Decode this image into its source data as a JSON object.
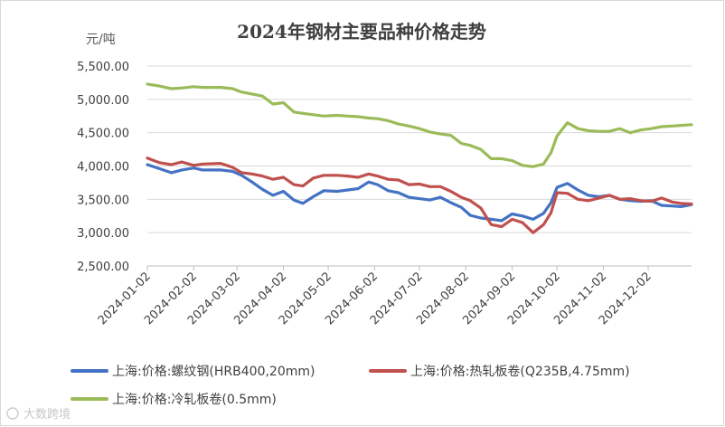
{
  "watermark": "大数跨境",
  "chart_data": {
    "type": "line",
    "title": "2024年钢材主要品种价格走势",
    "unit_label": "元/吨",
    "ylim": [
      2500,
      5500
    ],
    "yticks": [
      "2,500.00",
      "3,000.00",
      "3,500.00",
      "4,000.00",
      "4,500.00",
      "5,000.00",
      "5,500.00"
    ],
    "ytick_values": [
      2500,
      3000,
      3500,
      4000,
      4500,
      5000,
      5500
    ],
    "xlim": [
      "2024-01-02",
      "2024-12-31"
    ],
    "x_ticks": [
      "2024-01-02",
      "2024-02-02",
      "2024-03-02",
      "2024-04-02",
      "2024-05-02",
      "2024-06-02",
      "2024-07-02",
      "2024-08-02",
      "2024-09-02",
      "2024-10-02",
      "2024-11-02",
      "2024-12-02"
    ],
    "grid": "horizontal",
    "legend_position": "bottom",
    "series": [
      {
        "name": "上海:价格:螺纹钢(HRB400,20mm)",
        "color": "#4472C4",
        "points": [
          [
            "2024-01-02",
            4020
          ],
          [
            "2024-01-10",
            3960
          ],
          [
            "2024-01-18",
            3900
          ],
          [
            "2024-01-25",
            3940
          ],
          [
            "2024-02-02",
            3970
          ],
          [
            "2024-02-08",
            3940
          ],
          [
            "2024-02-20",
            3940
          ],
          [
            "2024-02-28",
            3920
          ],
          [
            "2024-03-05",
            3860
          ],
          [
            "2024-03-12",
            3760
          ],
          [
            "2024-03-19",
            3650
          ],
          [
            "2024-03-26",
            3560
          ],
          [
            "2024-04-02",
            3620
          ],
          [
            "2024-04-09",
            3490
          ],
          [
            "2024-04-15",
            3440
          ],
          [
            "2024-04-22",
            3540
          ],
          [
            "2024-04-29",
            3630
          ],
          [
            "2024-05-08",
            3620
          ],
          [
            "2024-05-15",
            3640
          ],
          [
            "2024-05-22",
            3660
          ],
          [
            "2024-05-29",
            3760
          ],
          [
            "2024-06-04",
            3720
          ],
          [
            "2024-06-11",
            3630
          ],
          [
            "2024-06-18",
            3600
          ],
          [
            "2024-06-25",
            3530
          ],
          [
            "2024-07-02",
            3510
          ],
          [
            "2024-07-09",
            3490
          ],
          [
            "2024-07-16",
            3530
          ],
          [
            "2024-07-23",
            3450
          ],
          [
            "2024-07-30",
            3380
          ],
          [
            "2024-08-05",
            3260
          ],
          [
            "2024-08-12",
            3220
          ],
          [
            "2024-08-19",
            3200
          ],
          [
            "2024-08-26",
            3180
          ],
          [
            "2024-09-02",
            3280
          ],
          [
            "2024-09-09",
            3250
          ],
          [
            "2024-09-16",
            3200
          ],
          [
            "2024-09-23",
            3290
          ],
          [
            "2024-09-28",
            3450
          ],
          [
            "2024-10-02",
            3680
          ],
          [
            "2024-10-09",
            3740
          ],
          [
            "2024-10-16",
            3640
          ],
          [
            "2024-10-23",
            3560
          ],
          [
            "2024-10-30",
            3540
          ],
          [
            "2024-11-06",
            3560
          ],
          [
            "2024-11-13",
            3500
          ],
          [
            "2024-11-20",
            3480
          ],
          [
            "2024-11-27",
            3470
          ],
          [
            "2024-12-04",
            3480
          ],
          [
            "2024-12-11",
            3410
          ],
          [
            "2024-12-18",
            3400
          ],
          [
            "2024-12-24",
            3390
          ],
          [
            "2024-12-31",
            3420
          ]
        ]
      },
      {
        "name": "上海:价格:热轧板卷(Q235B,4.75mm)",
        "color": "#C0504D",
        "points": [
          [
            "2024-01-02",
            4120
          ],
          [
            "2024-01-10",
            4050
          ],
          [
            "2024-01-18",
            4020
          ],
          [
            "2024-01-25",
            4060
          ],
          [
            "2024-02-02",
            4010
          ],
          [
            "2024-02-08",
            4030
          ],
          [
            "2024-02-20",
            4040
          ],
          [
            "2024-02-28",
            3980
          ],
          [
            "2024-03-05",
            3900
          ],
          [
            "2024-03-12",
            3880
          ],
          [
            "2024-03-19",
            3850
          ],
          [
            "2024-03-26",
            3800
          ],
          [
            "2024-04-02",
            3830
          ],
          [
            "2024-04-09",
            3720
          ],
          [
            "2024-04-15",
            3700
          ],
          [
            "2024-04-22",
            3820
          ],
          [
            "2024-04-29",
            3860
          ],
          [
            "2024-05-08",
            3860
          ],
          [
            "2024-05-15",
            3850
          ],
          [
            "2024-05-22",
            3830
          ],
          [
            "2024-05-29",
            3880
          ],
          [
            "2024-06-04",
            3850
          ],
          [
            "2024-06-11",
            3800
          ],
          [
            "2024-06-18",
            3790
          ],
          [
            "2024-06-25",
            3720
          ],
          [
            "2024-07-02",
            3730
          ],
          [
            "2024-07-09",
            3690
          ],
          [
            "2024-07-16",
            3690
          ],
          [
            "2024-07-23",
            3620
          ],
          [
            "2024-07-30",
            3530
          ],
          [
            "2024-08-05",
            3480
          ],
          [
            "2024-08-12",
            3370
          ],
          [
            "2024-08-19",
            3120
          ],
          [
            "2024-08-26",
            3090
          ],
          [
            "2024-09-02",
            3200
          ],
          [
            "2024-09-09",
            3150
          ],
          [
            "2024-09-16",
            3000
          ],
          [
            "2024-09-23",
            3120
          ],
          [
            "2024-09-28",
            3300
          ],
          [
            "2024-10-02",
            3600
          ],
          [
            "2024-10-09",
            3590
          ],
          [
            "2024-10-16",
            3500
          ],
          [
            "2024-10-23",
            3480
          ],
          [
            "2024-10-30",
            3520
          ],
          [
            "2024-11-06",
            3560
          ],
          [
            "2024-11-13",
            3500
          ],
          [
            "2024-11-20",
            3510
          ],
          [
            "2024-11-27",
            3480
          ],
          [
            "2024-12-04",
            3470
          ],
          [
            "2024-12-11",
            3520
          ],
          [
            "2024-12-18",
            3460
          ],
          [
            "2024-12-24",
            3440
          ],
          [
            "2024-12-31",
            3430
          ]
        ]
      },
      {
        "name": "上海:价格:冷轧板卷(0.5mm)",
        "color": "#9BBB59",
        "points": [
          [
            "2024-01-02",
            5230
          ],
          [
            "2024-01-10",
            5200
          ],
          [
            "2024-01-18",
            5160
          ],
          [
            "2024-01-25",
            5170
          ],
          [
            "2024-02-02",
            5190
          ],
          [
            "2024-02-08",
            5180
          ],
          [
            "2024-02-20",
            5180
          ],
          [
            "2024-02-28",
            5160
          ],
          [
            "2024-03-05",
            5110
          ],
          [
            "2024-03-12",
            5080
          ],
          [
            "2024-03-19",
            5050
          ],
          [
            "2024-03-26",
            4930
          ],
          [
            "2024-04-02",
            4950
          ],
          [
            "2024-04-09",
            4810
          ],
          [
            "2024-04-15",
            4790
          ],
          [
            "2024-04-22",
            4770
          ],
          [
            "2024-04-29",
            4750
          ],
          [
            "2024-05-08",
            4760
          ],
          [
            "2024-05-15",
            4750
          ],
          [
            "2024-05-22",
            4740
          ],
          [
            "2024-05-29",
            4720
          ],
          [
            "2024-06-04",
            4710
          ],
          [
            "2024-06-11",
            4680
          ],
          [
            "2024-06-18",
            4630
          ],
          [
            "2024-06-25",
            4600
          ],
          [
            "2024-07-02",
            4560
          ],
          [
            "2024-07-09",
            4510
          ],
          [
            "2024-07-16",
            4480
          ],
          [
            "2024-07-23",
            4460
          ],
          [
            "2024-07-30",
            4340
          ],
          [
            "2024-08-05",
            4310
          ],
          [
            "2024-08-12",
            4250
          ],
          [
            "2024-08-19",
            4110
          ],
          [
            "2024-08-26",
            4110
          ],
          [
            "2024-09-02",
            4080
          ],
          [
            "2024-09-09",
            4010
          ],
          [
            "2024-09-16",
            3990
          ],
          [
            "2024-09-23",
            4030
          ],
          [
            "2024-09-28",
            4200
          ],
          [
            "2024-10-02",
            4450
          ],
          [
            "2024-10-09",
            4650
          ],
          [
            "2024-10-16",
            4560
          ],
          [
            "2024-10-23",
            4530
          ],
          [
            "2024-10-30",
            4520
          ],
          [
            "2024-11-06",
            4520
          ],
          [
            "2024-11-13",
            4560
          ],
          [
            "2024-11-20",
            4500
          ],
          [
            "2024-11-27",
            4540
          ],
          [
            "2024-12-04",
            4560
          ],
          [
            "2024-12-11",
            4590
          ],
          [
            "2024-12-18",
            4600
          ],
          [
            "2024-12-24",
            4610
          ],
          [
            "2024-12-31",
            4620
          ]
        ]
      }
    ]
  }
}
